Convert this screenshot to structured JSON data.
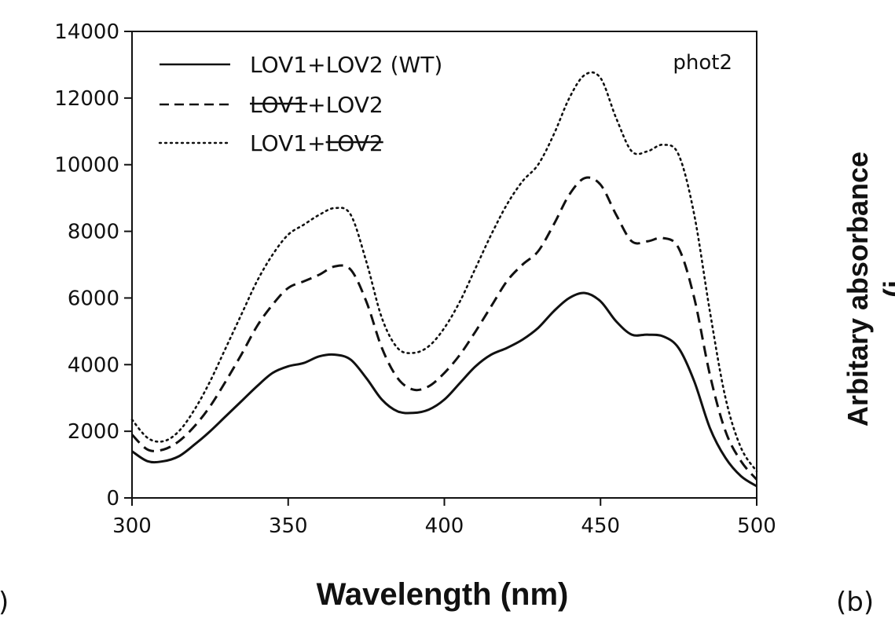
{
  "chart_data": {
    "type": "line",
    "title": "",
    "xlabel": "Wavelength (nm)",
    "ylabel": "",
    "xlim": [
      300,
      500
    ],
    "ylim": [
      0,
      14000
    ],
    "x_ticks": [
      "300",
      "350",
      "400",
      "450",
      "500"
    ],
    "y_ticks": [
      "0",
      "2000",
      "4000",
      "6000",
      "8000",
      "10000",
      "12000",
      "14000"
    ],
    "grid": false,
    "legend_position": "top-left",
    "annotation": "phot2",
    "x": [
      300,
      305,
      310,
      315,
      320,
      325,
      330,
      335,
      340,
      345,
      350,
      355,
      360,
      365,
      370,
      375,
      380,
      385,
      390,
      395,
      400,
      405,
      410,
      415,
      420,
      425,
      430,
      435,
      440,
      445,
      450,
      455,
      460,
      465,
      470,
      475,
      480,
      485,
      490,
      495,
      500
    ],
    "series": [
      {
        "name": "LOV1+LOV2 (WT)",
        "parts": [
          {
            "text": "LOV1",
            "strike": false
          },
          {
            "text": "+",
            "strike": false
          },
          {
            "text": "LOV2",
            "strike": false
          },
          {
            "text": " (WT)",
            "strike": false
          }
        ],
        "style": "solid",
        "values": [
          1400,
          1100,
          1100,
          1250,
          1600,
          2000,
          2450,
          2900,
          3350,
          3750,
          3950,
          4050,
          4250,
          4300,
          4150,
          3600,
          2950,
          2600,
          2550,
          2650,
          2950,
          3450,
          3950,
          4300,
          4500,
          4750,
          5100,
          5600,
          6000,
          6150,
          5900,
          5300,
          4900,
          4900,
          4850,
          4500,
          3500,
          2100,
          1200,
          650,
          350
        ]
      },
      {
        "name": "LOV1+LOV2",
        "parts": [
          {
            "text": "LOV1",
            "strike": true
          },
          {
            "text": "+",
            "strike": false
          },
          {
            "text": "LOV2",
            "strike": false
          }
        ],
        "style": "dashed",
        "values": [
          1900,
          1450,
          1450,
          1700,
          2150,
          2750,
          3500,
          4300,
          5150,
          5800,
          6300,
          6500,
          6700,
          6950,
          6850,
          5900,
          4500,
          3600,
          3250,
          3350,
          3750,
          4300,
          5000,
          5750,
          6500,
          7000,
          7400,
          8200,
          9100,
          9600,
          9400,
          8500,
          7700,
          7700,
          7800,
          7500,
          6000,
          3700,
          2000,
          1100,
          550
        ]
      },
      {
        "name": "LOV1+LOV2",
        "parts": [
          {
            "text": "LOV1",
            "strike": false
          },
          {
            "text": "+",
            "strike": false
          },
          {
            "text": "LOV2",
            "strike": true
          }
        ],
        "style": "dotted",
        "values": [
          2350,
          1800,
          1700,
          2000,
          2650,
          3500,
          4500,
          5500,
          6500,
          7300,
          7900,
          8200,
          8500,
          8700,
          8500,
          7100,
          5400,
          4500,
          4350,
          4550,
          5100,
          5900,
          6900,
          7900,
          8800,
          9500,
          10000,
          10900,
          12000,
          12700,
          12600,
          11400,
          10400,
          10400,
          10600,
          10300,
          8500,
          5600,
          3000,
          1500,
          800
        ]
      }
    ],
    "edge_labels": {
      "left_panel": ")",
      "right_panel": "(b)",
      "right_ylabel": "Arbitary absorbance",
      "right_ylabel_sub": "(i"
    }
  }
}
